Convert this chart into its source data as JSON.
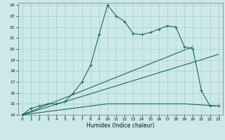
{
  "bg_color": "#cce8e8",
  "grid_color": "#aad4d4",
  "line_color": "#1a6b5a",
  "xlabel": "Humidex (Indice chaleur)",
  "xlim": [
    -0.5,
    23.5
  ],
  "ylim": [
    14,
    24.2
  ],
  "xticks": [
    0,
    1,
    2,
    3,
    4,
    5,
    6,
    7,
    8,
    9,
    10,
    11,
    12,
    13,
    14,
    15,
    16,
    17,
    18,
    19,
    20,
    21,
    22,
    23
  ],
  "yticks": [
    14,
    15,
    16,
    17,
    18,
    19,
    20,
    21,
    22,
    23,
    24
  ],
  "curve1_x": [
    0,
    1,
    2,
    3,
    4,
    5,
    6,
    7,
    8,
    9,
    10,
    11,
    12,
    13,
    14,
    15,
    16,
    17,
    18,
    19,
    20,
    21,
    22,
    23
  ],
  "curve1_y": [
    14.0,
    14.6,
    14.8,
    15.0,
    15.0,
    15.2,
    16.0,
    17.0,
    18.5,
    21.3,
    24.0,
    23.0,
    22.5,
    21.4,
    21.3,
    21.5,
    21.8,
    22.1,
    22.0,
    20.2,
    20.0,
    16.2,
    14.8,
    14.8
  ],
  "curve2_x": [
    0,
    20
  ],
  "curve2_y": [
    14.0,
    20.2
  ],
  "curve3_x": [
    0,
    23
  ],
  "curve3_y": [
    14.0,
    19.5
  ],
  "curve4_x": [
    0,
    10,
    19,
    23
  ],
  "curve4_y": [
    14.0,
    15.0,
    15.0,
    14.8
  ]
}
